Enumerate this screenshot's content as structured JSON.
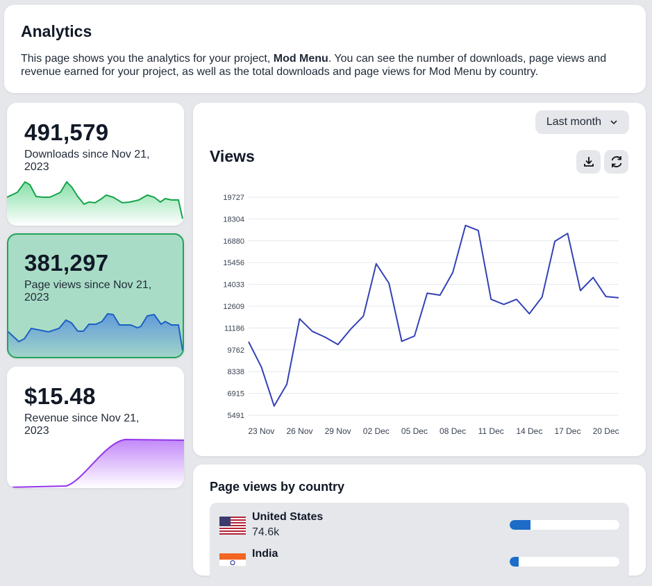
{
  "header": {
    "title": "Analytics",
    "desc_before": "This page shows you the analytics for your project, ",
    "project": "Mod Menu",
    "desc_after": ". You can see the number of downloads, page views and revenue earned for your project, as well as the total downloads and page views for Mod Menu by country."
  },
  "stats": [
    {
      "value": "491,579",
      "label": "Downloads since Nov 21, 2023",
      "color": "#16a34a"
    },
    {
      "value": "381,297",
      "label": "Page views since Nov 21, 2023",
      "color": "#2563eb",
      "selected": true
    },
    {
      "value": "$15.48",
      "label": "Revenue since Nov 21, 2023",
      "color": "#9333ea"
    }
  ],
  "chart": {
    "range_label": "Last month",
    "title": "Views",
    "download_icon": "download-icon",
    "refresh_icon": "refresh-icon"
  },
  "chart_data": {
    "type": "line",
    "title": "Views",
    "line_color": "#3341b5",
    "ylim": [
      5491,
      19727
    ],
    "yticks": [
      "19727",
      "18304",
      "16880",
      "15456",
      "14033",
      "12609",
      "11186",
      "9762",
      "8338",
      "6915",
      "5491"
    ],
    "xticks": [
      "23 Nov",
      "26 Nov",
      "29 Nov",
      "02 Dec",
      "05 Dec",
      "08 Dec",
      "11 Dec",
      "14 Dec",
      "17 Dec",
      "20 Dec"
    ],
    "grid": true,
    "x": [
      "22 Nov",
      "23 Nov",
      "24 Nov",
      "25 Nov",
      "26 Nov",
      "27 Nov",
      "28 Nov",
      "29 Nov",
      "30 Nov",
      "01 Dec",
      "02 Dec",
      "03 Dec",
      "04 Dec",
      "05 Dec",
      "06 Dec",
      "07 Dec",
      "08 Dec",
      "09 Dec",
      "10 Dec",
      "11 Dec",
      "12 Dec",
      "13 Dec",
      "14 Dec",
      "15 Dec",
      "16 Dec",
      "17 Dec",
      "18 Dec",
      "19 Dec",
      "20 Dec",
      "21 Dec"
    ],
    "values": [
      10286,
      8638,
      6090,
      7514,
      11785,
      10961,
      10586,
      10106,
      11110,
      11965,
      15381,
      14107,
      10316,
      10661,
      13463,
      13328,
      14812,
      17883,
      17554,
      13058,
      12729,
      13058,
      12115,
      13208,
      16850,
      17359,
      13628,
      14482,
      13238,
      13163
    ]
  },
  "countries": {
    "title": "Page views by country",
    "items": [
      {
        "name": "United States",
        "value": "74.6k",
        "share": 0.19,
        "flag": "us-flag"
      },
      {
        "name": "India",
        "value": "",
        "share": 0.08,
        "flag": "india-flag"
      }
    ]
  }
}
